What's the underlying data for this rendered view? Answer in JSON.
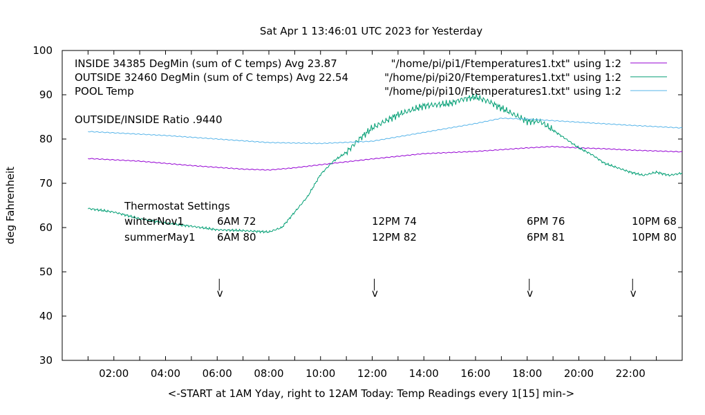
{
  "chart_data": {
    "type": "line",
    "title": "Sat Apr  1 13:46:01 UTC 2023 for Yesterday",
    "xlabel": "<-START at 1AM Yday, right to 12AM Today:  Temp Readings every 1[15] min->",
    "ylabel": "deg Fahrenheit",
    "xlim": [
      0,
      24
    ],
    "ylim": [
      30,
      100
    ],
    "xticks": [
      {
        "v": 2,
        "label": "02:00"
      },
      {
        "v": 4,
        "label": "04:00"
      },
      {
        "v": 6,
        "label": "06:00"
      },
      {
        "v": 8,
        "label": "08:00"
      },
      {
        "v": 10,
        "label": "10:00"
      },
      {
        "v": 12,
        "label": "12:00"
      },
      {
        "v": 14,
        "label": "14:00"
      },
      {
        "v": 16,
        "label": "16:00"
      },
      {
        "v": 18,
        "label": "18:00"
      },
      {
        "v": 20,
        "label": "20:00"
      },
      {
        "v": 22,
        "label": "22:00"
      }
    ],
    "yticks": [
      30,
      40,
      50,
      60,
      70,
      80,
      90,
      100
    ],
    "legend_position": "top-right",
    "series": [
      {
        "name": "INSIDE 34385 DegMin (sum of C temps) Avg 23.87",
        "source": "\"/home/pi/pi1/Ftemperatures1.txt\" using 1:2",
        "color": "#9400d3",
        "x": [
          1,
          3,
          5,
          7,
          8,
          9,
          10,
          12,
          14,
          16,
          18,
          19,
          20,
          21,
          22,
          24
        ],
        "y": [
          75.6,
          75,
          74,
          73.2,
          73,
          73.5,
          74.2,
          75.5,
          76.7,
          77.2,
          78,
          78.3,
          78,
          77.8,
          77.5,
          77.1
        ]
      },
      {
        "name": "OUTSIDE 32460 DegMin (sum of C temps) Avg 22.54",
        "source": "\"/home/pi/pi20/Ftemperatures1.txt\" using 1:2",
        "color": "#009e73",
        "x": [
          1,
          2,
          3,
          4,
          5,
          6,
          7,
          8,
          8.5,
          9,
          9.5,
          10,
          10.5,
          11,
          11.5,
          12,
          12.5,
          13,
          14,
          15,
          15.5,
          16,
          16.5,
          17,
          17.5,
          18,
          18.5,
          19,
          19.5,
          20,
          20.5,
          21,
          21.5,
          22,
          22.5,
          23,
          23.5,
          24
        ],
        "y": [
          64.3,
          63.5,
          62,
          61,
          60.3,
          59.5,
          59.3,
          59,
          60,
          63.5,
          67,
          72,
          75,
          77,
          80,
          82.5,
          84,
          85.5,
          87.5,
          88,
          89,
          89.5,
          88.5,
          87,
          85.5,
          84,
          84,
          82,
          80,
          78,
          76.5,
          74.5,
          73.5,
          72.5,
          71.8,
          72.5,
          71.8,
          72.3
        ]
      },
      {
        "name": "POOL Temp",
        "source": "\"/home/pi/pi10/Ftemperatures1.txt\" using 1:2",
        "color": "#56b4e9",
        "x": [
          1,
          4,
          6,
          8,
          10,
          12,
          14,
          16,
          17,
          18,
          20,
          22,
          24
        ],
        "y": [
          81.7,
          80.8,
          80,
          79.2,
          79,
          79.5,
          81.5,
          83.5,
          84.7,
          84.5,
          83.8,
          83.1,
          82.5
        ]
      }
    ],
    "annotations": {
      "ratio": "OUTSIDE/INSIDE Ratio .9440",
      "thermostat_title": "Thermostat Settings",
      "rows": [
        {
          "label": "winterNov1",
          "values": [
            "6AM 72",
            "12PM 74",
            "6PM 76",
            "10PM 68"
          ]
        },
        {
          "label": "summerMay1",
          "values": [
            "6AM 80",
            "12PM 82",
            "6PM 81",
            "10PM 80"
          ]
        }
      ],
      "arrow_hours": [
        6,
        12,
        18,
        22
      ],
      "arrow_glyph": "v"
    }
  }
}
